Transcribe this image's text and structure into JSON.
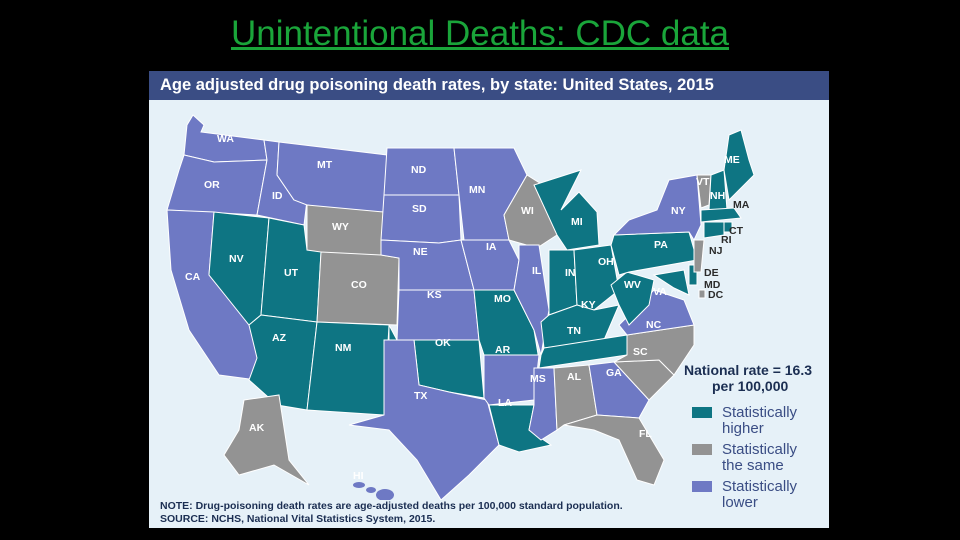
{
  "slide": {
    "title": "Unintentional Deaths: CDC data"
  },
  "figure": {
    "title": "Age adjusted drug poisoning death rates, by state: United States, 2015",
    "legend": {
      "title_line1": "National rate = 16.3",
      "title_line2": "per 100,000",
      "items": [
        {
          "key": "higher",
          "label_line1": "Statistically",
          "label_line2": "higher"
        },
        {
          "key": "same",
          "label_line1": "Statistically",
          "label_line2": "the same"
        },
        {
          "key": "lower",
          "label_line1": "Statistically",
          "label_line2": "lower"
        }
      ]
    },
    "note": "NOTE: Drug-poisoning death rates are age-adjusted deaths per 100,000 standard population.",
    "source": "SOURCE: NCHS, National Vital Statistics System, 2015."
  },
  "colors": {
    "higher": "#0e7583",
    "same": "#939393",
    "lower": "#6e79c4",
    "header": "#3a4d84",
    "background": "#e6f1f8",
    "title": "#1aa53a"
  },
  "states": {
    "WA": "lower",
    "OR": "lower",
    "CA": "lower",
    "ID": "lower",
    "NV": "higher",
    "MT": "lower",
    "WY": "same",
    "UT": "higher",
    "AZ": "higher",
    "CO": "same",
    "NM": "higher",
    "ND": "lower",
    "SD": "lower",
    "NE": "lower",
    "KS": "lower",
    "OK": "higher",
    "TX": "lower",
    "MN": "lower",
    "IA": "lower",
    "MO": "higher",
    "AR": "lower",
    "LA": "higher",
    "WI": "same",
    "IL": "lower",
    "MI": "higher",
    "IN": "higher",
    "OH": "higher",
    "KY": "higher",
    "TN": "higher",
    "MS": "lower",
    "AL": "same",
    "GA": "lower",
    "FL": "same",
    "SC": "same",
    "NC": "same",
    "VA": "lower",
    "WV": "higher",
    "PA": "higher",
    "NY": "lower",
    "VT": "same",
    "NH": "higher",
    "ME": "higher",
    "MA": "higher",
    "CT": "higher",
    "RI": "higher",
    "NJ": "same",
    "DE": "higher",
    "MD": "higher",
    "DC": "same",
    "AK": "same",
    "HI": "lower"
  }
}
